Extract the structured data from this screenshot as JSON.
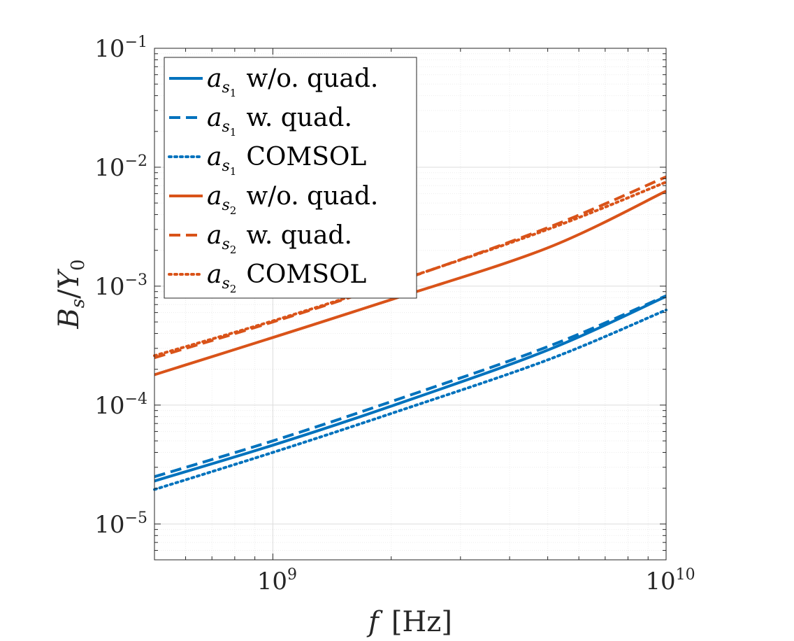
{
  "chart_data": {
    "type": "line",
    "xscale": "log",
    "yscale": "log",
    "xlabel": {
      "var": "f",
      "unit": "[Hz]"
    },
    "ylabel": {
      "num": "B",
      "num_sub": "s",
      "den": "Y",
      "den_sub": "0"
    },
    "xlim": [
      500000000,
      10000000000
    ],
    "ylim": [
      5e-06,
      0.1
    ],
    "xticks": [
      {
        "value": 1000000000,
        "base": "10",
        "exp": "9"
      },
      {
        "value": 10000000000,
        "base": "10",
        "exp": "10"
      }
    ],
    "yticks": [
      {
        "value": 1e-05,
        "base": "10",
        "exp": "−5"
      },
      {
        "value": 0.0001,
        "base": "10",
        "exp": "−4"
      },
      {
        "value": 0.001,
        "base": "10",
        "exp": "−3"
      },
      {
        "value": 0.01,
        "base": "10",
        "exp": "−2"
      },
      {
        "value": 0.1,
        "base": "10",
        "exp": "−1"
      }
    ],
    "grid": true,
    "minor_grid": true,
    "legend_position": "top-left",
    "series": [
      {
        "name": "a_s1 w/o. quad.",
        "label_base": "a",
        "label_sub": "s",
        "label_subsub": "1",
        "label_text": "w/o. quad.",
        "color": "#0072BD",
        "style": "solid",
        "x": [
          500000000,
          1000000000,
          2000000000,
          5000000000,
          10000000000
        ],
        "y": [
          2.3e-05,
          4.6e-05,
          9.8e-05,
          0.00029,
          0.00082
        ]
      },
      {
        "name": "a_s1 w. quad.",
        "label_base": "a",
        "label_sub": "s",
        "label_subsub": "1",
        "label_text": "w. quad.",
        "color": "#0072BD",
        "style": "dashed",
        "x": [
          500000000,
          1000000000,
          2000000000,
          5000000000,
          10000000000
        ],
        "y": [
          2.5e-05,
          5e-05,
          0.000107,
          0.00031,
          0.00083
        ]
      },
      {
        "name": "a_s1 COMSOL",
        "label_base": "a",
        "label_sub": "s",
        "label_subsub": "1",
        "label_text": "COMSOL",
        "color": "#0072BD",
        "style": "dotted",
        "x": [
          500000000,
          1000000000,
          2000000000,
          5000000000,
          10000000000
        ],
        "y": [
          1.95e-05,
          4e-05,
          8.5e-05,
          0.00024,
          0.00063
        ]
      },
      {
        "name": "a_s2 w/o. quad.",
        "label_base": "a",
        "label_sub": "s",
        "label_subsub": "2",
        "label_text": "w/o. quad.",
        "color": "#D95319",
        "style": "solid",
        "x": [
          500000000,
          1000000000,
          2000000000,
          5000000000,
          10000000000
        ],
        "y": [
          0.00018,
          0.00037,
          0.00077,
          0.0021,
          0.0063
        ]
      },
      {
        "name": "a_s2 w. quad.",
        "label_base": "a",
        "label_sub": "s",
        "label_subsub": "2",
        "label_text": "w. quad.",
        "color": "#D95319",
        "style": "dashed",
        "x": [
          500000000,
          1000000000,
          2000000000,
          5000000000,
          10000000000
        ],
        "y": [
          0.00025,
          0.0005,
          0.00105,
          0.0031,
          0.0083
        ]
      },
      {
        "name": "a_s2 COMSOL",
        "label_base": "a",
        "label_sub": "s",
        "label_subsub": "2",
        "label_text": "COMSOL",
        "color": "#D95319",
        "style": "dotted",
        "x": [
          500000000,
          1000000000,
          2000000000,
          5000000000,
          10000000000
        ],
        "y": [
          0.00026,
          0.00051,
          0.00106,
          0.003,
          0.0075
        ]
      }
    ]
  }
}
